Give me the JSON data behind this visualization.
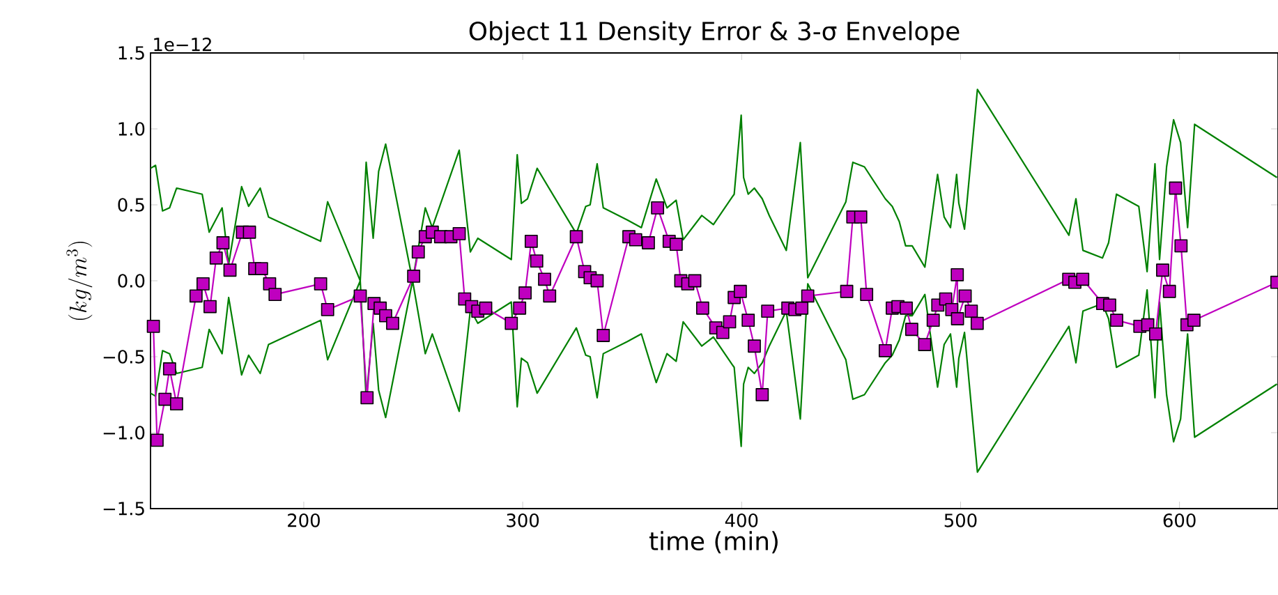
{
  "chart_data": {
    "type": "line",
    "title": "Object 11 Density Error & 3-σ Envelope",
    "xlabel": "time (min)",
    "ylabel": "(kg/m^3)",
    "annotations": [
      "1e−12"
    ],
    "xlim": [
      130,
      645
    ],
    "ylim": [
      -1.5,
      1.5
    ],
    "xticks": [
      200,
      300,
      400,
      500,
      600
    ],
    "yticks": [
      {
        "value": -1.5,
        "label": "−1.5"
      },
      {
        "value": -1.0,
        "label": "−1.0"
      },
      {
        "value": -0.5,
        "label": "−0.5"
      },
      {
        "value": 0.0,
        "label": "0.0"
      },
      {
        "value": 0.5,
        "label": "0.5"
      },
      {
        "value": 1.0,
        "label": "1.0"
      },
      {
        "value": 1.5,
        "label": "1.5"
      }
    ],
    "series": [
      {
        "color": "#008000",
        "marker": "none",
        "x": [
          130,
          132.3,
          135.5,
          138.7,
          141.9,
          153.6,
          156.8,
          162.7,
          165.7,
          171.6,
          174.8,
          180.1,
          183.9,
          207.7,
          210.9,
          225.8,
          228.5,
          231.7,
          234.2,
          237.4,
          249.7,
          255.5,
          258.7,
          271,
          276.1,
          279.5,
          294.8,
          297.5,
          299.4,
          302.2,
          306.6,
          324.5,
          328.8,
          330.8,
          334,
          336.8,
          347.8,
          354.2,
          361,
          365.9,
          370.1,
          373.3,
          381.8,
          387.1,
          395.6,
          396.6,
          399.8,
          400.9,
          403,
          405.8,
          409.4,
          412.6,
          420.4,
          426.8,
          430.2,
          447.6,
          450.8,
          456.1,
          465.6,
          468.8,
          472,
          474.9,
          477.9,
          483.7,
          489.5,
          492.5,
          495.4,
          498.2,
          499.2,
          501.8,
          507.7,
          549.5,
          552.7,
          555.9,
          564.8,
          567.6,
          571.2,
          581.4,
          585.2,
          588.8,
          590.9,
          594.1,
          597.3,
          600.5,
          603.7,
          606.9,
          644.5
        ],
        "values": [
          0.74,
          0.76,
          0.46,
          0.48,
          0.61,
          0.57,
          0.32,
          0.48,
          0.11,
          0.62,
          0.49,
          0.61,
          0.42,
          0.26,
          0.52,
          0.0,
          0.78,
          0.28,
          0.72,
          0.9,
          0.0,
          0.48,
          0.35,
          0.86,
          0.19,
          0.28,
          0.14,
          0.83,
          0.51,
          0.54,
          0.74,
          0.31,
          0.49,
          0.5,
          0.77,
          0.48,
          0.4,
          0.35,
          0.67,
          0.48,
          0.53,
          0.27,
          0.43,
          0.37,
          0.55,
          0.57,
          1.09,
          0.68,
          0.57,
          0.61,
          0.54,
          0.43,
          0.2,
          0.91,
          0.02,
          0.52,
          0.78,
          0.75,
          0.54,
          0.49,
          0.39,
          0.23,
          0.23,
          0.09,
          0.7,
          0.42,
          0.35,
          0.7,
          0.51,
          0.34,
          1.26,
          0.3,
          0.54,
          0.2,
          0.15,
          0.25,
          0.57,
          0.49,
          0.06,
          0.77,
          0.14,
          0.75,
          1.06,
          0.91,
          0.35,
          1.03,
          0.68
        ]
      },
      {
        "color": "#008000",
        "marker": "none",
        "x": [
          130,
          132.3,
          135.5,
          138.7,
          141.9,
          153.6,
          156.8,
          162.7,
          165.7,
          171.6,
          174.8,
          180.1,
          183.9,
          207.7,
          210.9,
          225.8,
          228.5,
          231.7,
          234.2,
          237.4,
          249.7,
          255.5,
          258.7,
          271,
          276.1,
          279.5,
          294.8,
          297.5,
          299.4,
          302.2,
          306.6,
          324.5,
          328.8,
          330.8,
          334,
          336.8,
          347.8,
          354.2,
          361,
          365.9,
          370.1,
          373.3,
          381.8,
          387.1,
          395.6,
          396.6,
          399.8,
          400.9,
          403,
          405.8,
          409.4,
          412.6,
          420.4,
          426.8,
          430.2,
          447.6,
          450.8,
          456.1,
          465.6,
          468.8,
          472,
          474.9,
          477.9,
          483.7,
          489.5,
          492.5,
          495.4,
          498.2,
          499.2,
          501.8,
          507.7,
          549.5,
          552.7,
          555.9,
          564.8,
          567.6,
          571.2,
          581.4,
          585.2,
          588.8,
          590.9,
          594.1,
          597.3,
          600.5,
          603.7,
          606.9,
          644.5
        ],
        "values": [
          -0.74,
          -0.76,
          -0.46,
          -0.48,
          -0.61,
          -0.57,
          -0.32,
          -0.48,
          -0.11,
          -0.62,
          -0.49,
          -0.61,
          -0.42,
          -0.26,
          -0.52,
          0.0,
          -0.78,
          -0.28,
          -0.72,
          -0.9,
          0.0,
          -0.48,
          -0.35,
          -0.86,
          -0.19,
          -0.28,
          -0.14,
          -0.83,
          -0.51,
          -0.54,
          -0.74,
          -0.31,
          -0.49,
          -0.5,
          -0.77,
          -0.48,
          -0.4,
          -0.35,
          -0.67,
          -0.48,
          -0.53,
          -0.27,
          -0.43,
          -0.37,
          -0.55,
          -0.57,
          -1.09,
          -0.68,
          -0.57,
          -0.61,
          -0.54,
          -0.43,
          -0.2,
          -0.91,
          -0.02,
          -0.52,
          -0.78,
          -0.75,
          -0.54,
          -0.49,
          -0.39,
          -0.23,
          -0.23,
          -0.09,
          -0.7,
          -0.42,
          -0.35,
          -0.7,
          -0.51,
          -0.34,
          -1.26,
          -0.3,
          -0.54,
          -0.2,
          -0.15,
          -0.25,
          -0.57,
          -0.49,
          -0.06,
          -0.77,
          -0.14,
          -0.75,
          -1.06,
          -0.91,
          -0.35,
          -1.03,
          -0.68
        ]
      },
      {
        "color": "#bf00bf",
        "marker": "square",
        "x": [
          131.3,
          133,
          136.6,
          138.7,
          141.9,
          150.8,
          154,
          157.2,
          160,
          163.1,
          166.3,
          172,
          175.2,
          177.6,
          180.7,
          184.4,
          186.9,
          207.7,
          210.9,
          225.8,
          228.9,
          232.1,
          234.9,
          237.4,
          240.6,
          250.2,
          252.3,
          255.5,
          258.7,
          262.5,
          267.2,
          271,
          273.5,
          276.7,
          279.5,
          283.1,
          294.8,
          298.6,
          301.1,
          303.9,
          306.4,
          310,
          312.3,
          324.5,
          328.3,
          330.8,
          334,
          336.8,
          348.5,
          351.6,
          357.4,
          361.6,
          366.9,
          370.1,
          372.2,
          375.4,
          378.6,
          382.2,
          388.2,
          391.4,
          394.5,
          396.6,
          399.4,
          403,
          405.8,
          409.4,
          411.9,
          421.1,
          424.3,
          427.5,
          430.2,
          448,
          450.8,
          454.4,
          457.1,
          465.6,
          468.8,
          471.4,
          475.2,
          477.7,
          483.6,
          487.5,
          489.6,
          493.2,
          496,
          498.5,
          498.6,
          502.1,
          504.9,
          507.6,
          549.4,
          552.2,
          555.8,
          564.9,
          568.1,
          571.3,
          581.9,
          585.5,
          589.1,
          592.3,
          595.4,
          598.2,
          600.7,
          603.4,
          606.6,
          644.5
        ],
        "values": [
          -0.3,
          -1.05,
          -0.78,
          -0.58,
          -0.81,
          -0.1,
          -0.02,
          -0.17,
          0.15,
          0.25,
          0.07,
          0.32,
          0.32,
          0.08,
          0.08,
          -0.02,
          -0.09,
          -0.02,
          -0.19,
          -0.1,
          -0.77,
          -0.15,
          -0.18,
          -0.23,
          -0.28,
          0.03,
          0.19,
          0.29,
          0.32,
          0.29,
          0.29,
          0.31,
          -0.12,
          -0.17,
          -0.2,
          -0.18,
          -0.28,
          -0.18,
          -0.08,
          0.26,
          0.13,
          0.01,
          -0.1,
          0.29,
          0.06,
          0.02,
          0.0,
          -0.36,
          0.29,
          0.27,
          0.25,
          0.48,
          0.26,
          0.24,
          0.0,
          -0.02,
          0.0,
          -0.18,
          -0.31,
          -0.34,
          -0.27,
          -0.11,
          -0.07,
          -0.26,
          -0.43,
          -0.75,
          -0.2,
          -0.18,
          -0.19,
          -0.18,
          -0.1,
          -0.07,
          0.42,
          0.42,
          -0.09,
          -0.46,
          -0.18,
          -0.17,
          -0.18,
          -0.32,
          -0.42,
          -0.26,
          -0.16,
          -0.12,
          -0.19,
          0.04,
          -0.25,
          -0.1,
          -0.2,
          -0.28,
          0.01,
          -0.01,
          0.01,
          -0.15,
          -0.16,
          -0.26,
          -0.3,
          -0.29,
          -0.35,
          0.07,
          -0.07,
          0.61,
          0.23,
          -0.29,
          -0.26,
          -0.01
        ]
      }
    ]
  }
}
